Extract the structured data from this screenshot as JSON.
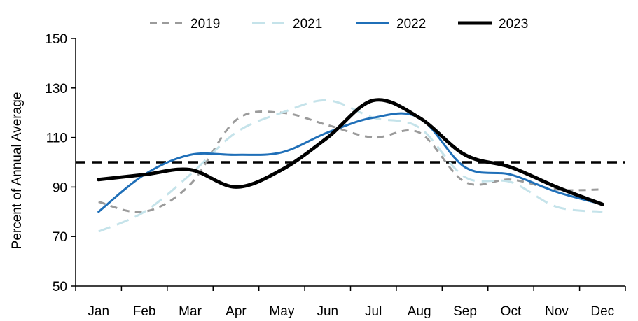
{
  "chart_data": {
    "type": "line",
    "title": "",
    "xlabel": "",
    "ylabel": "Percent of Annual Average",
    "categories": [
      "Jan",
      "Feb",
      "Mar",
      "Apr",
      "May",
      "Jun",
      "Jul",
      "Aug",
      "Sep",
      "Oct",
      "Nov",
      "Dec"
    ],
    "ylim": [
      50,
      150
    ],
    "yticks": [
      50,
      70,
      90,
      110,
      130,
      150
    ],
    "grid": false,
    "legend_position": "top",
    "reference_line": {
      "value": 100,
      "style": "dashed",
      "color": "#000000"
    },
    "series": [
      {
        "name": "2019",
        "color": "#9b9b9b",
        "style": "dashed",
        "values": [
          84,
          80,
          91,
          117,
          120,
          115,
          110,
          112,
          92,
          93,
          89,
          89
        ]
      },
      {
        "name": "2021",
        "color": "#c5e3ea",
        "style": "dashed",
        "values": [
          72,
          80,
          95,
          112,
          120,
          125,
          118,
          114,
          94,
          92,
          82,
          80
        ]
      },
      {
        "name": "2022",
        "color": "#1f6fb8",
        "style": "solid",
        "values": [
          80,
          95,
          103,
          103,
          104,
          112,
          118,
          118,
          98,
          95,
          88,
          83
        ]
      },
      {
        "name": "2023",
        "color": "#000000",
        "style": "solid",
        "values": [
          93,
          95,
          97,
          90,
          97,
          110,
          125,
          118,
          103,
          98,
          90,
          83
        ]
      }
    ]
  }
}
